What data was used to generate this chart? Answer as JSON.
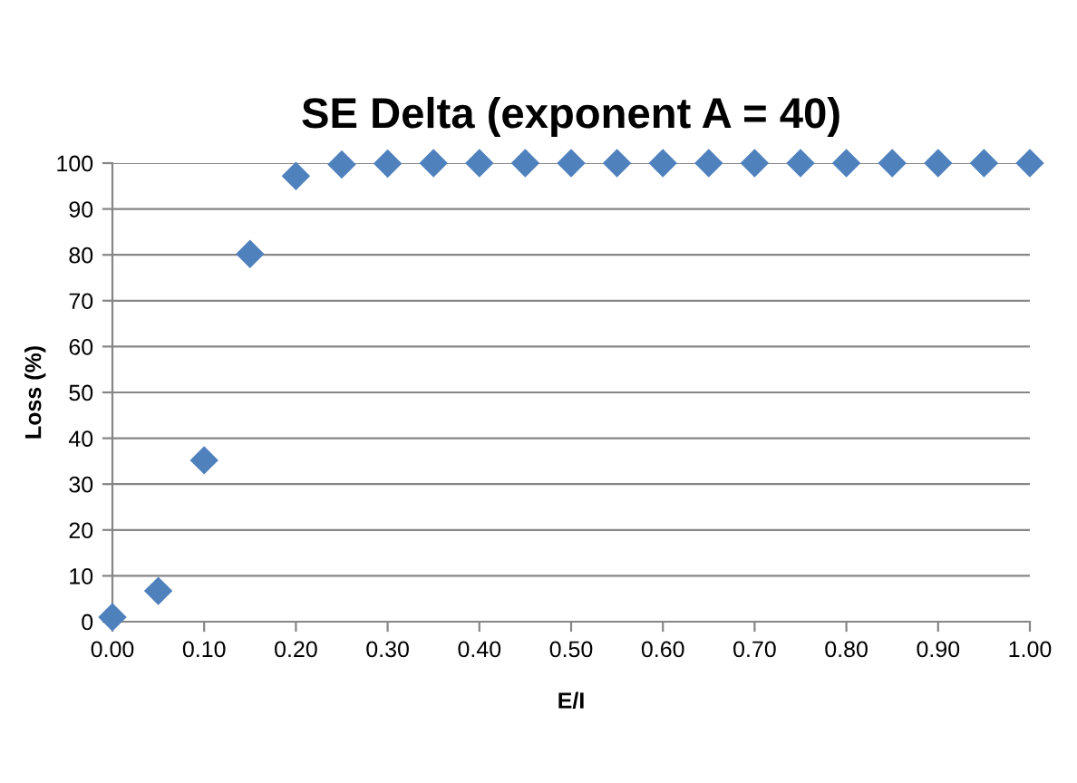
{
  "chart_data": {
    "type": "scatter",
    "title": "SE Delta (exponent A = 40)",
    "xlabel": "E/I",
    "ylabel": "Loss (%)",
    "x": [
      0,
      0.05,
      0.1,
      0.15,
      0.2,
      0.25,
      0.3,
      0.35,
      0.4,
      0.45,
      0.5,
      0.55,
      0.6,
      0.65,
      0.7,
      0.75,
      0.8,
      0.85,
      0.9,
      0.95,
      1.0
    ],
    "values": [
      1,
      6.7,
      35.2,
      80.2,
      97.2,
      99.7,
      99.9,
      100,
      100,
      100,
      100,
      100,
      100,
      100,
      100,
      100,
      100,
      100,
      100,
      100,
      100
    ],
    "color": "#4f81bd",
    "marker": "diamond",
    "grid": "y",
    "xlim": [
      0,
      1
    ],
    "ylim": [
      0,
      100
    ],
    "xticks": [
      {
        "value": 0,
        "label": "0.00"
      },
      {
        "value": 0.1,
        "label": "0.10"
      },
      {
        "value": 0.2,
        "label": "0.20"
      },
      {
        "value": 0.3,
        "label": "0.30"
      },
      {
        "value": 0.4,
        "label": "0.40"
      },
      {
        "value": 0.5,
        "label": "0.50"
      },
      {
        "value": 0.6,
        "label": "0.60"
      },
      {
        "value": 0.7,
        "label": "0.70"
      },
      {
        "value": 0.8,
        "label": "0.80"
      },
      {
        "value": 0.9,
        "label": "0.90"
      },
      {
        "value": 1.0,
        "label": "1.00"
      }
    ],
    "yticks": [
      0,
      10,
      20,
      30,
      40,
      50,
      60,
      70,
      80,
      90,
      100
    ]
  }
}
